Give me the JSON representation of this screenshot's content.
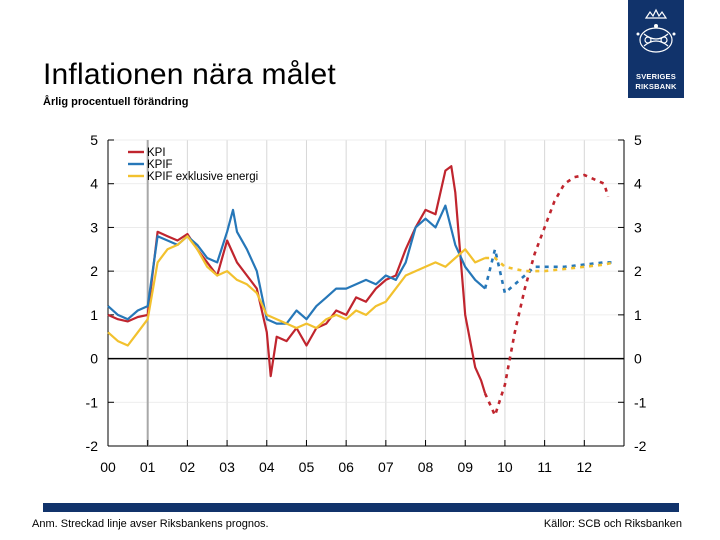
{
  "header": {
    "title": "Inflationen nära målet",
    "subtitle": "Årlig procentuell förändring"
  },
  "logo": {
    "line1": "SVERIGES",
    "line2": "RIKSBANK"
  },
  "footer": {
    "note": "Anm. Streckad linje avser Riksbankens prognos.",
    "sources": "Källor: SCB och Riksbanken"
  },
  "colors": {
    "KPI": "#c0252e",
    "KPIF": "#2677b8",
    "KPIF_ex": "#f2c12e",
    "brand": "#11336b"
  },
  "chart_data": {
    "type": "line",
    "x_unit": "year",
    "xlim": [
      2000,
      2013
    ],
    "ylim": [
      -2,
      5
    ],
    "yticks": [
      -2,
      -1,
      0,
      1,
      2,
      3,
      4,
      5
    ],
    "ytick_labels": [
      "-2",
      "-1",
      "0",
      "1",
      "2",
      "3",
      "4",
      "5"
    ],
    "xticks": [
      2000,
      2001,
      2002,
      2003,
      2004,
      2005,
      2006,
      2007,
      2008,
      2009,
      2010,
      2011,
      2012
    ],
    "xtick_labels": [
      "00",
      "01",
      "02",
      "03",
      "04",
      "05",
      "06",
      "07",
      "08",
      "09",
      "10",
      "11",
      "12"
    ],
    "forecast_start": 2009.5,
    "grid": true,
    "legend_position": "top-left",
    "series": [
      {
        "name": "KPI",
        "key": "KPI",
        "x": [
          2000.0,
          2000.25,
          2000.5,
          2000.75,
          2001.0,
          2001.25,
          2001.5,
          2001.75,
          2002.0,
          2002.25,
          2002.5,
          2002.75,
          2003.0,
          2003.25,
          2003.5,
          2003.75,
          2004.0,
          2004.1,
          2004.25,
          2004.5,
          2004.75,
          2005.0,
          2005.25,
          2005.5,
          2005.75,
          2006.0,
          2006.25,
          2006.5,
          2006.75,
          2007.0,
          2007.25,
          2007.5,
          2007.75,
          2008.0,
          2008.25,
          2008.5,
          2008.65,
          2008.75,
          2009.0,
          2009.25,
          2009.4,
          2009.5,
          2009.75,
          2010.0,
          2010.25,
          2010.5,
          2010.75,
          2011.0,
          2011.25,
          2011.5,
          2011.75,
          2012.0,
          2012.25,
          2012.5,
          2012.6
        ],
        "y": [
          1.0,
          0.9,
          0.85,
          0.95,
          1.0,
          2.9,
          2.8,
          2.7,
          2.85,
          2.5,
          2.2,
          1.9,
          2.7,
          2.2,
          1.9,
          1.6,
          0.6,
          -0.4,
          0.5,
          0.4,
          0.7,
          0.3,
          0.7,
          0.8,
          1.1,
          1.0,
          1.4,
          1.3,
          1.6,
          1.8,
          1.9,
          2.5,
          3.0,
          3.4,
          3.3,
          4.3,
          4.4,
          3.8,
          1.0,
          -0.2,
          -0.5,
          -0.8,
          -1.3,
          -0.6,
          0.6,
          1.6,
          2.4,
          3.0,
          3.6,
          4.0,
          4.15,
          4.2,
          4.1,
          4.0,
          3.7
        ],
        "forecast_from": 2009.5
      },
      {
        "name": "KPIF",
        "key": "KPIF",
        "x": [
          2000.0,
          2000.25,
          2000.5,
          2000.75,
          2001.0,
          2001.25,
          2001.5,
          2001.75,
          2002.0,
          2002.25,
          2002.5,
          2002.75,
          2003.0,
          2003.15,
          2003.25,
          2003.5,
          2003.75,
          2004.0,
          2004.25,
          2004.5,
          2004.75,
          2005.0,
          2005.25,
          2005.5,
          2005.75,
          2006.0,
          2006.25,
          2006.5,
          2006.75,
          2007.0,
          2007.25,
          2007.5,
          2007.75,
          2008.0,
          2008.25,
          2008.5,
          2008.75,
          2009.0,
          2009.25,
          2009.5,
          2009.75,
          2010.0,
          2010.25,
          2010.5,
          2010.75,
          2011.0,
          2011.5,
          2012.0,
          2012.5,
          2012.75
        ],
        "y": [
          1.2,
          1.0,
          0.9,
          1.1,
          1.2,
          2.8,
          2.7,
          2.6,
          2.8,
          2.6,
          2.3,
          2.2,
          2.9,
          3.4,
          2.9,
          2.5,
          2.0,
          0.9,
          0.8,
          0.8,
          1.1,
          0.9,
          1.2,
          1.4,
          1.6,
          1.6,
          1.7,
          1.8,
          1.7,
          1.9,
          1.8,
          2.2,
          3.0,
          3.2,
          3.0,
          3.5,
          2.6,
          2.1,
          1.8,
          1.6,
          2.5,
          1.5,
          1.7,
          1.9,
          2.1,
          2.1,
          2.1,
          2.15,
          2.2,
          2.2
        ],
        "forecast_from": 2009.5
      },
      {
        "name": "KPIF exklusive energi",
        "key": "KPIF_ex",
        "x": [
          2000.0,
          2000.25,
          2000.5,
          2000.75,
          2001.0,
          2001.25,
          2001.5,
          2001.75,
          2002.0,
          2002.25,
          2002.5,
          2002.75,
          2003.0,
          2003.25,
          2003.5,
          2003.75,
          2004.0,
          2004.25,
          2004.5,
          2004.75,
          2005.0,
          2005.25,
          2005.5,
          2005.75,
          2006.0,
          2006.25,
          2006.5,
          2006.75,
          2007.0,
          2007.25,
          2007.5,
          2007.75,
          2008.0,
          2008.25,
          2008.5,
          2008.75,
          2009.0,
          2009.25,
          2009.5,
          2009.75,
          2010.0,
          2010.25,
          2010.5,
          2010.75,
          2011.0,
          2011.5,
          2012.0,
          2012.5,
          2012.75
        ],
        "y": [
          0.6,
          0.4,
          0.3,
          0.6,
          0.9,
          2.2,
          2.5,
          2.6,
          2.8,
          2.5,
          2.1,
          1.9,
          2.0,
          1.8,
          1.7,
          1.5,
          1.0,
          0.9,
          0.8,
          0.7,
          0.8,
          0.7,
          0.9,
          1.0,
          0.9,
          1.1,
          1.0,
          1.2,
          1.3,
          1.6,
          1.9,
          2.0,
          2.1,
          2.2,
          2.1,
          2.3,
          2.5,
          2.2,
          2.3,
          2.3,
          2.1,
          2.05,
          2.0,
          2.0,
          2.0,
          2.05,
          2.1,
          2.15,
          2.2
        ],
        "forecast_from": 2009.5
      }
    ]
  }
}
